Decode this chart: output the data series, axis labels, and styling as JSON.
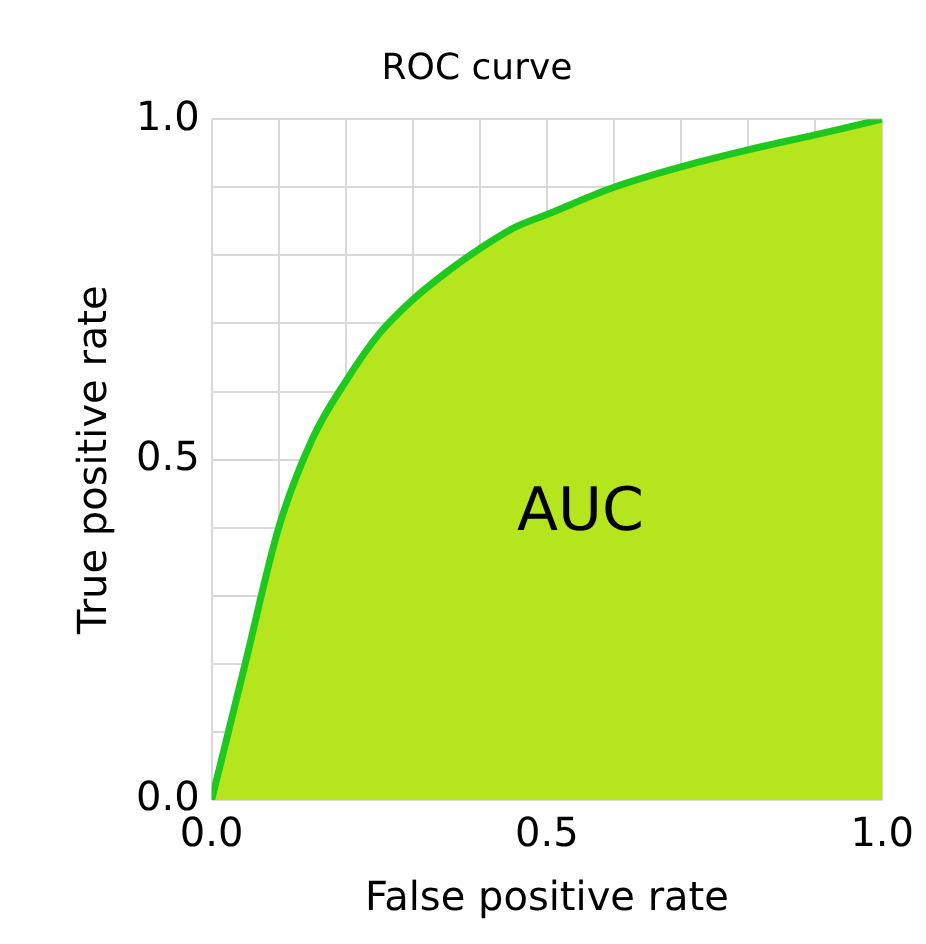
{
  "chart_data": {
    "type": "area",
    "title": "ROC curve",
    "xlabel": "False positive rate",
    "ylabel": "True positive rate",
    "x": [
      0,
      0.05,
      0.1,
      0.15,
      0.2,
      0.25,
      0.3,
      0.35,
      0.4,
      0.45,
      0.5,
      0.6,
      0.7,
      0.8,
      0.9,
      1
    ],
    "series": [
      {
        "color": "#1ec81e",
        "values": [
          0,
          0.2,
          0.4,
          0.53,
          0.615,
          0.685,
          0.735,
          0.775,
          0.81,
          0.84,
          0.86,
          0.9,
          0.93,
          0.955,
          0.977,
          1
        ]
      }
    ],
    "xlim": [
      0,
      1
    ],
    "ylim": [
      0,
      1
    ],
    "xticks": [
      {
        "value": 0,
        "label": "0.0"
      },
      {
        "value": 0.1,
        "label": null
      },
      {
        "value": 0.2,
        "label": null
      },
      {
        "value": 0.3,
        "label": null
      },
      {
        "value": 0.4,
        "label": null
      },
      {
        "value": 0.5,
        "label": "0.5"
      },
      {
        "value": 0.6,
        "label": null
      },
      {
        "value": 0.7,
        "label": null
      },
      {
        "value": 0.8,
        "label": null
      },
      {
        "value": 0.9,
        "label": null
      },
      {
        "value": 1,
        "label": "1.0"
      }
    ],
    "yticks": [
      {
        "value": 0,
        "label": "0.0"
      },
      {
        "value": 0.1,
        "label": null
      },
      {
        "value": 0.2,
        "label": null
      },
      {
        "value": 0.3,
        "label": null
      },
      {
        "value": 0.4,
        "label": null
      },
      {
        "value": 0.5,
        "label": "0.5"
      },
      {
        "value": 0.6,
        "label": null
      },
      {
        "value": 0.7,
        "label": null
      },
      {
        "value": 0.8,
        "label": null
      },
      {
        "value": 0.9,
        "label": null
      },
      {
        "value": 1,
        "label": "1.0"
      }
    ],
    "grid": true,
    "legend": false,
    "marker": "none",
    "line_style": "solid",
    "annotations": [
      "AUC"
    ]
  }
}
